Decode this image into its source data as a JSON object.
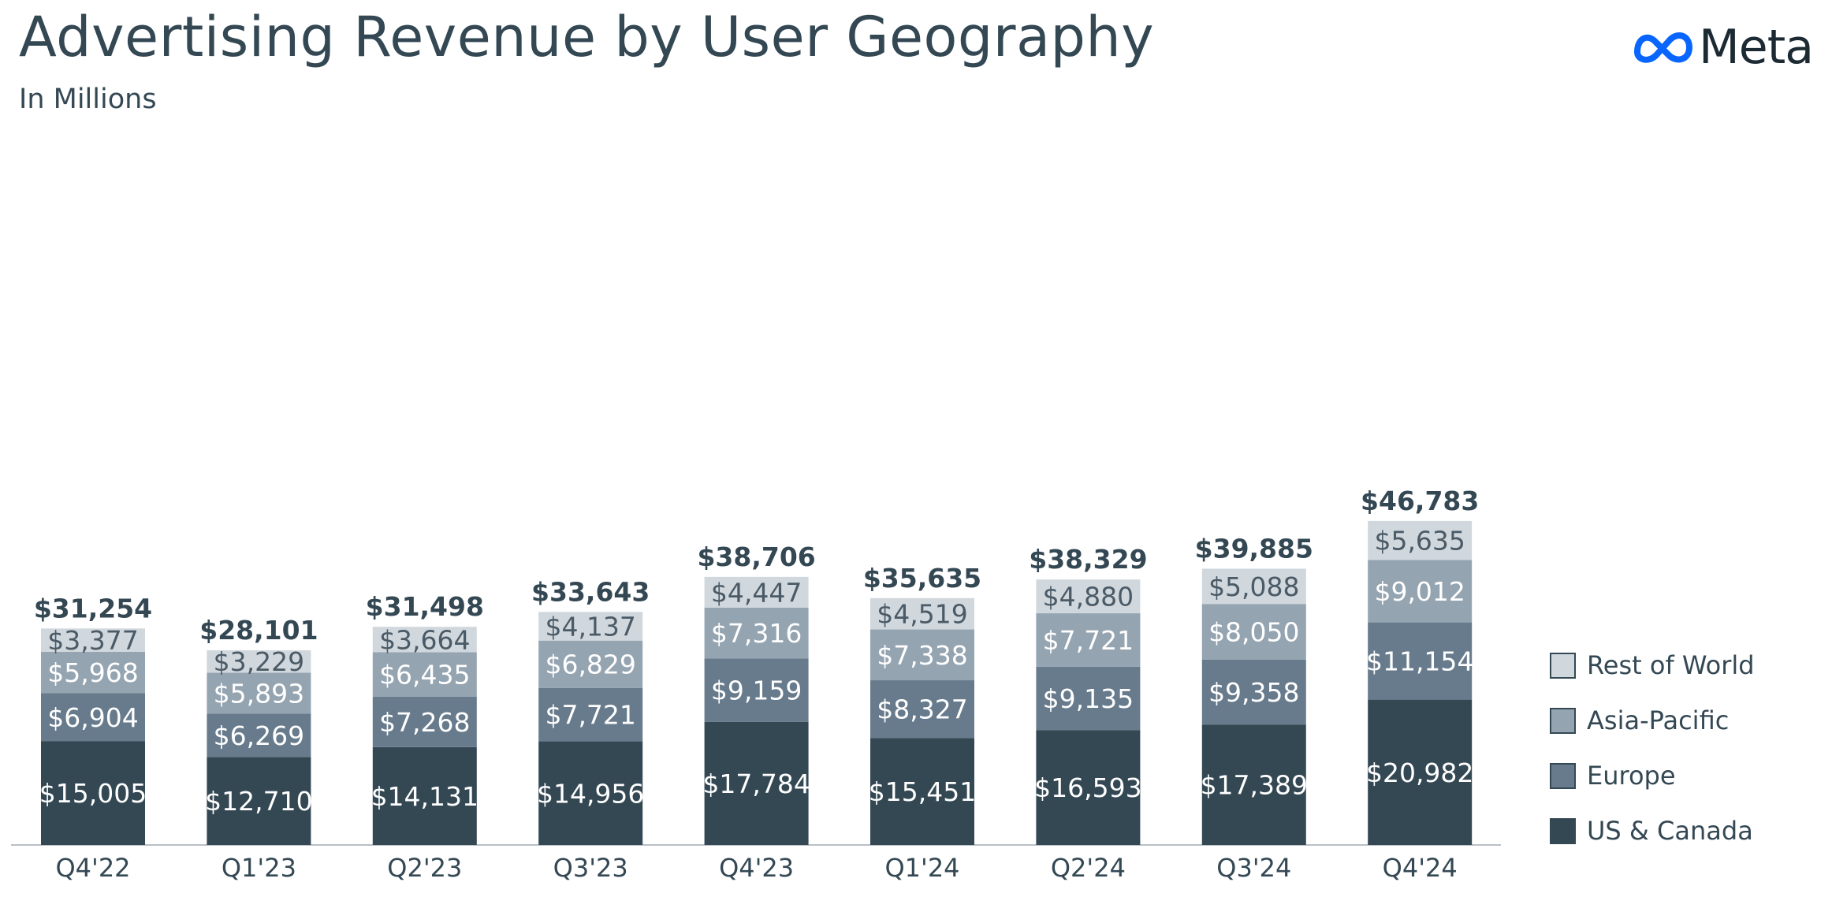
{
  "header": {
    "title": "Advertising Revenue by User Geography",
    "subtitle": "In Millions",
    "brand": "Meta"
  },
  "colors": {
    "us_canada": "#344854",
    "europe": "#677b8c",
    "asia_pacific": "#95a4b1",
    "rest_of_world": "#d0d7dd",
    "text_dark": "#344854",
    "logo_blue": "#0866ff"
  },
  "legend": {
    "items": [
      {
        "label": "Rest of World",
        "color": "#d0d7dd"
      },
      {
        "label": "Asia-Pacific",
        "color": "#95a4b1"
      },
      {
        "label": "Europe",
        "color": "#677b8c"
      },
      {
        "label": "US & Canada",
        "color": "#344854"
      }
    ]
  },
  "chart_data": {
    "type": "bar",
    "stacked": true,
    "title": "Advertising Revenue by User Geography",
    "subtitle": "In Millions",
    "xlabel": "",
    "ylabel": "",
    "ylim": [
      0,
      50000
    ],
    "grid": false,
    "legend_position": "right",
    "categories": [
      "Q4'22",
      "Q1'23",
      "Q2'23",
      "Q3'23",
      "Q4'23",
      "Q1'24",
      "Q2'24",
      "Q3'24",
      "Q4'24"
    ],
    "series": [
      {
        "name": "US & Canada",
        "color": "#344854",
        "label_color": "#ffffff",
        "values": [
          15005,
          12710,
          14131,
          14956,
          17784,
          15451,
          16593,
          17389,
          20982
        ],
        "labels": [
          "$15,005",
          "$12,710",
          "$14,131",
          "$14,956",
          "$17,784",
          "$15,451",
          "$16,593",
          "$17,389",
          "$20,982"
        ]
      },
      {
        "name": "Europe",
        "color": "#677b8c",
        "label_color": "#ffffff",
        "values": [
          6904,
          6269,
          7268,
          7721,
          9159,
          8327,
          9135,
          9358,
          11154
        ],
        "labels": [
          "$6,904",
          "$6,269",
          "$7,268",
          "$7,721",
          "$9,159",
          "$8,327",
          "$9,135",
          "$9,358",
          "$11,154"
        ]
      },
      {
        "name": "Asia-Pacific",
        "color": "#95a4b1",
        "label_color": "#ffffff",
        "values": [
          5968,
          5893,
          6435,
          6829,
          7316,
          7338,
          7721,
          8050,
          9012
        ],
        "labels": [
          "$5,968",
          "$5,893",
          "$6,435",
          "$6,829",
          "$7,316",
          "$7,338",
          "$7,721",
          "$8,050",
          "$9,012"
        ]
      },
      {
        "name": "Rest of World",
        "color": "#d0d7dd",
        "label_color": "#4a5a66",
        "values": [
          3377,
          3229,
          3664,
          4137,
          4447,
          4519,
          4880,
          5088,
          5635
        ],
        "labels": [
          "$3,377",
          "$3,229",
          "$3,664",
          "$4,137",
          "$4,447",
          "$4,519",
          "$4,880",
          "$5,088",
          "$5,635"
        ]
      }
    ],
    "totals": [
      31254,
      28101,
      31498,
      33643,
      38706,
      35635,
      38329,
      39885,
      46783
    ],
    "total_labels": [
      "$31,254",
      "$28,101",
      "$31,498",
      "$33,643",
      "$38,706",
      "$35,635",
      "$38,329",
      "$39,885",
      "$46,783"
    ]
  }
}
